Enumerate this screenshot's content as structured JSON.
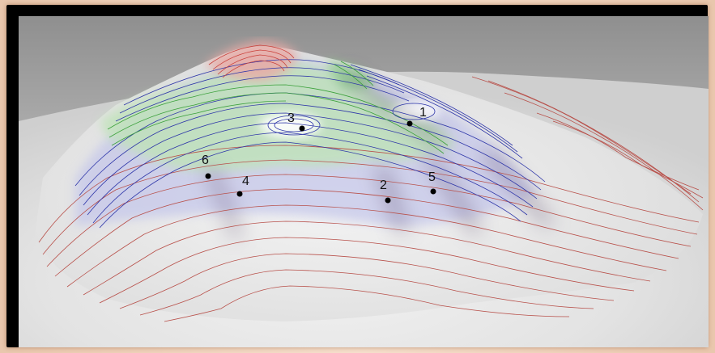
{
  "figure": {
    "markers": [
      {
        "id": "1",
        "label": "1"
      },
      {
        "id": "2",
        "label": "2"
      },
      {
        "id": "3",
        "label": "3"
      },
      {
        "id": "4",
        "label": "4"
      },
      {
        "id": "5",
        "label": "5"
      },
      {
        "id": "6",
        "label": "6"
      }
    ],
    "contour_colors": {
      "low": "#b8504a",
      "mid": "#2d35a8",
      "high": "#3aa03a",
      "summit": "#c9403a"
    },
    "surface_colors": {
      "background": "#9a9a9a",
      "ground": "#e4e4e4",
      "green_band": "#b6dcb0",
      "blue_band": "#c4c6e6",
      "red_summit": "#e4a4a0"
    }
  }
}
